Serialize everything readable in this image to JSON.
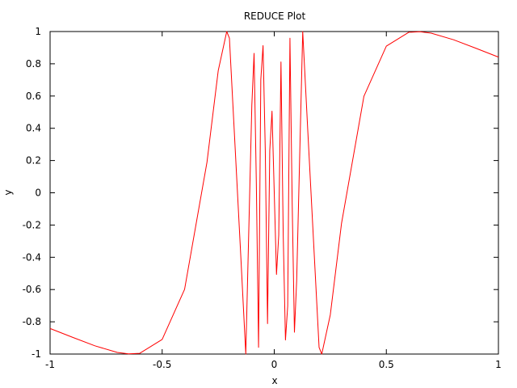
{
  "chart_data": {
    "type": "line",
    "title": "REDUCE Plot",
    "xlabel": "x",
    "ylabel": "y",
    "xlim": [
      -1,
      1
    ],
    "ylim": [
      -1,
      1
    ],
    "x_ticks": [
      "-1",
      "-0.5",
      "0",
      "0.5",
      "1"
    ],
    "y_ticks": [
      "-1",
      "-0.8",
      "-0.6",
      "-0.4",
      "-0.2",
      "0",
      "0.2",
      "0.4",
      "0.6",
      "0.8",
      "1"
    ],
    "grid": false,
    "legend": "none",
    "series": [
      {
        "color": "#ff0000",
        "points": [
          [
            -1.0,
            -0.8415
          ],
          [
            -0.9,
            -0.8961
          ],
          [
            -0.8,
            -0.949
          ],
          [
            -0.7,
            -0.9901
          ],
          [
            -0.65,
            -0.9989
          ],
          [
            -0.6,
            -0.9954
          ],
          [
            -0.5,
            -0.9093
          ],
          [
            -0.4,
            -0.5985
          ],
          [
            -0.3,
            0.1906
          ],
          [
            -0.25,
            0.7568
          ],
          [
            -0.212,
            1.0
          ],
          [
            -0.2,
            0.9589
          ],
          [
            -0.15,
            -0.3734
          ],
          [
            -0.127,
            -1.0
          ],
          [
            -0.1,
            0.544
          ],
          [
            -0.09,
            0.8645
          ],
          [
            -0.08,
            0.0663
          ],
          [
            -0.07,
            -0.9589
          ],
          [
            -0.06,
            0.7024
          ],
          [
            -0.05,
            0.9129
          ],
          [
            -0.04,
            0.2624
          ],
          [
            -0.03,
            -0.8116
          ],
          [
            -0.02,
            0.2624
          ],
          [
            -0.01,
            0.5064
          ],
          [
            0.0,
            0.0
          ],
          [
            0.01,
            -0.5064
          ],
          [
            0.02,
            -0.2624
          ],
          [
            0.03,
            0.8116
          ],
          [
            0.04,
            -0.2624
          ],
          [
            0.05,
            -0.9129
          ],
          [
            0.06,
            -0.7024
          ],
          [
            0.07,
            0.9589
          ],
          [
            0.08,
            -0.0663
          ],
          [
            0.09,
            -0.8645
          ],
          [
            0.1,
            -0.544
          ],
          [
            0.127,
            1.0
          ],
          [
            0.15,
            0.3734
          ],
          [
            0.2,
            -0.9589
          ],
          [
            0.212,
            -1.0
          ],
          [
            0.25,
            -0.7568
          ],
          [
            0.3,
            -0.1906
          ],
          [
            0.4,
            0.5985
          ],
          [
            0.5,
            0.9093
          ],
          [
            0.6,
            0.9954
          ],
          [
            0.65,
            0.9989
          ],
          [
            0.7,
            0.9901
          ],
          [
            0.8,
            0.949
          ],
          [
            0.9,
            0.8961
          ],
          [
            1.0,
            0.8415
          ]
        ]
      }
    ]
  }
}
